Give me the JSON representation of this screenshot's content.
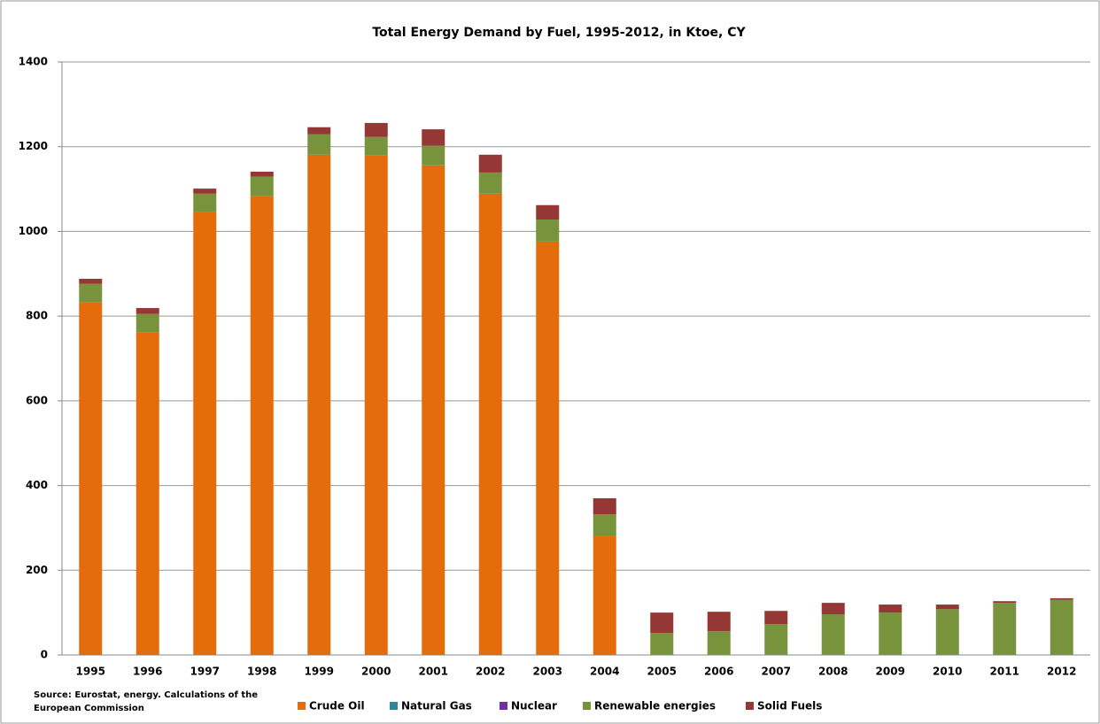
{
  "chart_data": {
    "type": "stacked_bar",
    "title": "Total Energy Demand by Fuel, 1995-2012, in Ktoe, CY",
    "source": "Source: Eurostat, energy. Calculations of the European Commission",
    "categories": [
      "1995",
      "1996",
      "1997",
      "1998",
      "1999",
      "2000",
      "2001",
      "2002",
      "2003",
      "2004",
      "2005",
      "2006",
      "2007",
      "2008",
      "2009",
      "2010",
      "2011",
      "2012"
    ],
    "series": [
      {
        "name": "Crude Oil",
        "color": "#e46c0a",
        "values": [
          832,
          761,
          1045,
          1083,
          1181,
          1179,
          1156,
          1089,
          976,
          282,
          0,
          0,
          0,
          0,
          0,
          0,
          0,
          0
        ]
      },
      {
        "name": "Natural Gas",
        "color": "#31859c",
        "values": [
          0,
          0,
          0,
          0,
          0,
          0,
          0,
          0,
          0,
          0,
          0,
          0,
          0,
          0,
          0,
          0,
          0,
          0
        ]
      },
      {
        "name": "Nuclear",
        "color": "#7030a0",
        "values": [
          0,
          0,
          0,
          0,
          0,
          0,
          0,
          0,
          0,
          0,
          0,
          0,
          0,
          0,
          0,
          0,
          0,
          0
        ]
      },
      {
        "name": "Renewable energies",
        "color": "#77933c",
        "values": [
          44,
          44,
          44,
          46,
          48,
          44,
          46,
          50,
          52,
          50,
          52,
          56,
          73,
          96,
          100,
          108,
          123,
          130
        ]
      },
      {
        "name": "Solid Fuels",
        "color": "#953735",
        "values": [
          12,
          14,
          12,
          12,
          17,
          33,
          39,
          42,
          34,
          38,
          48,
          46,
          31,
          27,
          19,
          11,
          4,
          4
        ]
      }
    ],
    "ylim": [
      0,
      1400
    ],
    "yticks": [
      0,
      200,
      400,
      600,
      800,
      1000,
      1200,
      1400
    ],
    "grid": true
  }
}
